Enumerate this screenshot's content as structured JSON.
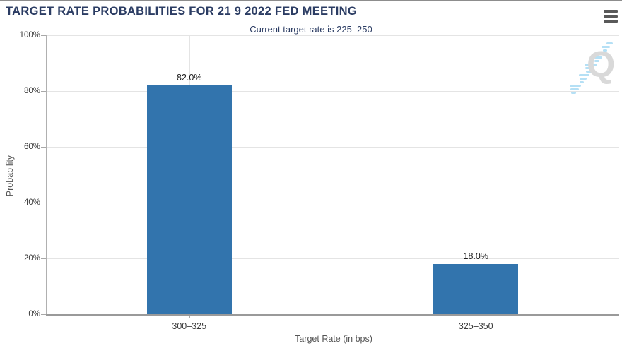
{
  "header": {
    "menu_icon": "hamburger-icon"
  },
  "chart_data": {
    "type": "bar",
    "title": "TARGET RATE PROBABILITIES FOR 21 9 2022 FED MEETING",
    "subtitle": "Current target rate is 225–250",
    "xlabel": "Target Rate (in bps)",
    "ylabel": "Probability",
    "categories": [
      "300–325",
      "325–350"
    ],
    "values": [
      82.0,
      18.0
    ],
    "value_labels": [
      "82.0%",
      "18.0%"
    ],
    "ylim": [
      0,
      100
    ],
    "yticks": [
      0,
      20,
      40,
      60,
      80,
      100
    ],
    "ytick_labels": [
      "0%",
      "20%",
      "40%",
      "60%",
      "80%",
      "100%"
    ],
    "grid": true,
    "legend": "none",
    "bar_color": "#3274ad",
    "title_color": "#2b3c63",
    "watermark": "Q",
    "watermark_color": "#d9d9d9",
    "watermark_dash_color": "#b5e0f5"
  }
}
